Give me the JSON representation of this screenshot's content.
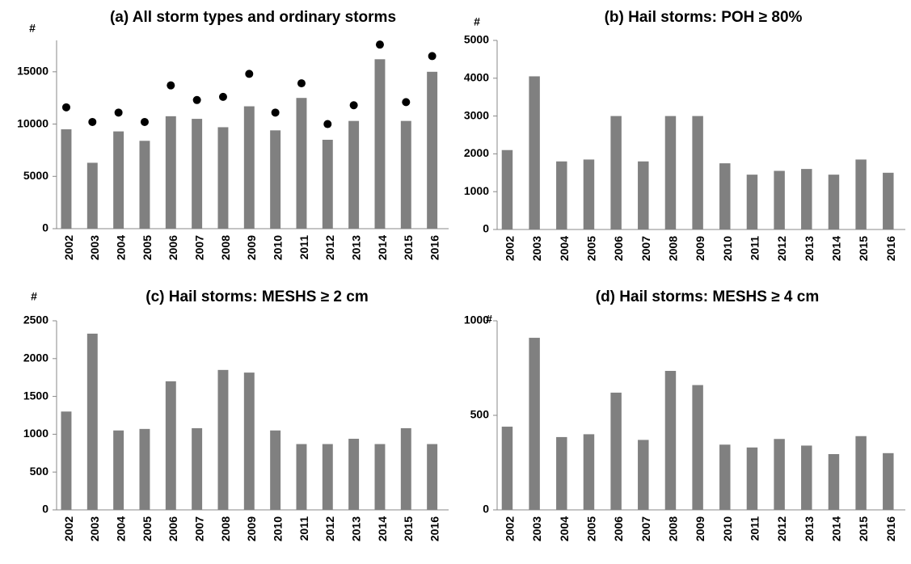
{
  "chart_data": [
    {
      "type": "bar",
      "title": "(a)  All storm types and ordinary storms",
      "y_label": "#",
      "categories": [
        "2002",
        "2003",
        "2004",
        "2005",
        "2006",
        "2007",
        "2008",
        "2009",
        "2010",
        "2011",
        "2012",
        "2013",
        "2014",
        "2015",
        "2016"
      ],
      "series": [
        {
          "type": "bar",
          "color": "#808080",
          "values": [
            9500,
            6300,
            9300,
            8400,
            10750,
            10500,
            9700,
            11700,
            9400,
            12500,
            8500,
            10300,
            16200,
            10300,
            15000
          ]
        },
        {
          "type": "scatter",
          "color": "#000000",
          "values": [
            11600,
            10200,
            11100,
            10200,
            13700,
            12300,
            12600,
            14800,
            11100,
            13900,
            10000,
            11800,
            17600,
            12100,
            16500
          ]
        }
      ],
      "ylim": [
        0,
        18000
      ],
      "yticks": [
        0,
        5000,
        10000,
        15000
      ],
      "grid": false
    },
    {
      "type": "bar",
      "title": "(b)  Hail storms: POH ≥ 80%",
      "y_label": "#",
      "categories": [
        "2002",
        "2003",
        "2004",
        "2005",
        "2006",
        "2007",
        "2008",
        "2009",
        "2010",
        "2011",
        "2012",
        "2013",
        "2014",
        "2015",
        "2016"
      ],
      "series": [
        {
          "type": "bar",
          "color": "#808080",
          "values": [
            2100,
            4050,
            1800,
            1850,
            3000,
            1800,
            3000,
            3000,
            1750,
            1450,
            1550,
            1600,
            1450,
            1850,
            1500
          ]
        }
      ],
      "ylim": [
        0,
        5000
      ],
      "yticks": [
        0,
        1000,
        2000,
        3000,
        4000,
        5000
      ],
      "grid": false
    },
    {
      "type": "bar",
      "title": "(c)  Hail storms: MESHS ≥ 2 cm",
      "y_label": "#",
      "categories": [
        "2002",
        "2003",
        "2004",
        "2005",
        "2006",
        "2007",
        "2008",
        "2009",
        "2010",
        "2011",
        "2012",
        "2013",
        "2014",
        "2015",
        "2016"
      ],
      "series": [
        {
          "type": "bar",
          "color": "#808080",
          "values": [
            1300,
            2330,
            1050,
            1070,
            1700,
            1080,
            1850,
            1815,
            1050,
            870,
            870,
            940,
            870,
            1080,
            870
          ]
        }
      ],
      "ylim": [
        0,
        2500
      ],
      "yticks": [
        0,
        500,
        1000,
        1500,
        2000,
        2500
      ],
      "grid": false
    },
    {
      "type": "bar",
      "title": "(d)  Hail storms: MESHS ≥ 4 cm",
      "y_label": "#",
      "categories": [
        "2002",
        "2003",
        "2004",
        "2005",
        "2006",
        "2007",
        "2008",
        "2009",
        "2010",
        "2011",
        "2012",
        "2013",
        "2014",
        "2015",
        "2016"
      ],
      "series": [
        {
          "type": "bar",
          "color": "#808080",
          "values": [
            440,
            910,
            385,
            400,
            620,
            370,
            735,
            660,
            345,
            330,
            375,
            340,
            295,
            390,
            300
          ]
        }
      ],
      "ylim": [
        0,
        1000
      ],
      "yticks": [
        0,
        500,
        1000
      ],
      "grid": false
    }
  ]
}
